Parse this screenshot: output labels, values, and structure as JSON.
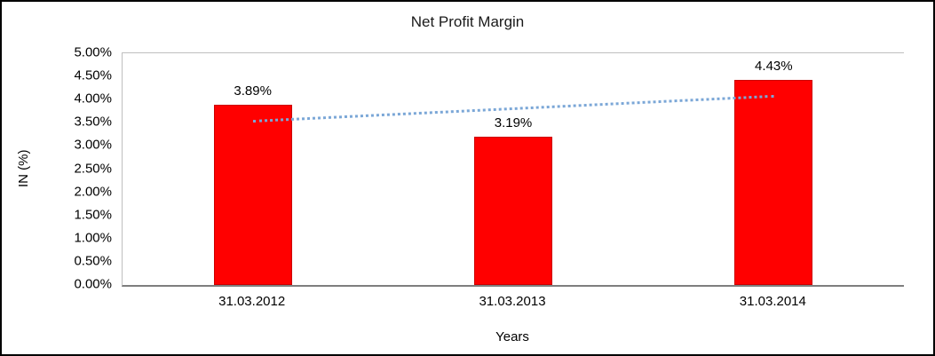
{
  "chart_data": {
    "type": "bar",
    "title": "Net Profit Margin",
    "categories": [
      "31.03.2012",
      "31.03.2013",
      "31.03.2014"
    ],
    "values": [
      3.89,
      3.19,
      4.43
    ],
    "data_labels": [
      "3.89%",
      "3.19%",
      "4.43%"
    ],
    "xlabel": "Years",
    "ylabel": "IN (%)",
    "ylim": [
      0,
      5
    ],
    "ytick_step": 0.5,
    "ytick_labels": [
      "0.00%",
      "0.50%",
      "1.00%",
      "1.50%",
      "2.00%",
      "2.50%",
      "3.00%",
      "3.50%",
      "4.00%",
      "4.50%",
      "5.00%"
    ],
    "bar_color": "#FF0000",
    "grid": false,
    "legend": false,
    "trendline": {
      "type": "linear",
      "style": "dotted",
      "color": "#7ba7d7",
      "thickness": 3
    }
  }
}
